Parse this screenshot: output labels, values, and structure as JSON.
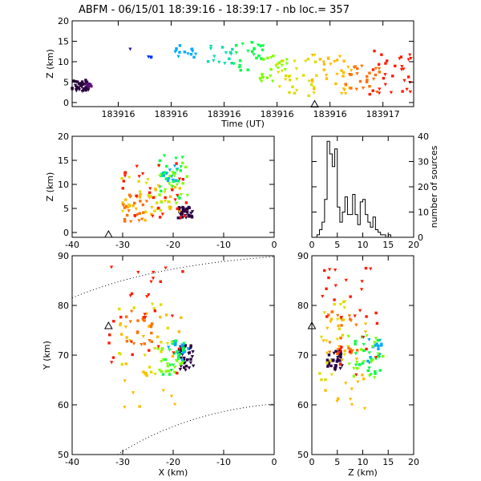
{
  "title": "ABFM - 06/15/01 18:39:16 - 18:39:17 - nb loc.=     357",
  "chart_data": [
    {
      "id": "time-height",
      "type": "scatter",
      "xlabel": "Time (UT)",
      "ylabel": "Z (km)",
      "xlim": [
        0,
        1
      ],
      "ylim": [
        -1,
        20
      ],
      "xticks": [
        {
          "v": 0.135,
          "label": "183916"
        },
        {
          "v": 0.29,
          "label": "183916"
        },
        {
          "v": 0.445,
          "label": "183916"
        },
        {
          "v": 0.6,
          "label": "183916"
        },
        {
          "v": 0.755,
          "label": "183916"
        },
        {
          "v": 0.91,
          "label": "183917"
        }
      ],
      "yticks": [
        0,
        5,
        10,
        15,
        20
      ],
      "station_marker": {
        "x": 0.71,
        "z": -0.5
      },
      "clusters": [
        {
          "color": "#2a0040",
          "x": [
            0.0,
            0.05
          ],
          "z": [
            2.5,
            5.5
          ],
          "n": 45
        },
        {
          "color": "#5a0f78",
          "x": [
            0.04,
            0.06
          ],
          "z": [
            3.5,
            5.0
          ],
          "n": 6
        },
        {
          "color": "#3a1aa0",
          "x": [
            0.17,
            0.17
          ],
          "z": [
            13,
            13.5
          ],
          "n": 1
        },
        {
          "color": "#0033ff",
          "x": [
            0.22,
            0.25
          ],
          "z": [
            11,
            12.5
          ],
          "n": 3
        },
        {
          "color": "#00aaff",
          "x": [
            0.28,
            0.38
          ],
          "z": [
            11,
            14
          ],
          "n": 14
        },
        {
          "color": "#00ddaa",
          "x": [
            0.38,
            0.47
          ],
          "z": [
            9.5,
            14
          ],
          "n": 14
        },
        {
          "color": "#00ff44",
          "x": [
            0.47,
            0.56
          ],
          "z": [
            7.5,
            15.5
          ],
          "n": 22
        },
        {
          "color": "#7fff00",
          "x": [
            0.55,
            0.63
          ],
          "z": [
            5,
            12
          ],
          "n": 22
        },
        {
          "color": "#dddd00",
          "x": [
            0.6,
            0.72
          ],
          "z": [
            1.5,
            12
          ],
          "n": 28
        },
        {
          "color": "#ffbb00",
          "x": [
            0.7,
            0.82
          ],
          "z": [
            2,
            12
          ],
          "n": 30
        },
        {
          "color": "#ff7000",
          "x": [
            0.8,
            0.9
          ],
          "z": [
            2.5,
            9
          ],
          "n": 24
        },
        {
          "color": "#ff1a00",
          "x": [
            0.87,
            1.0
          ],
          "z": [
            2,
            13.5
          ],
          "n": 30
        }
      ]
    },
    {
      "id": "x-z",
      "type": "scatter",
      "xlabel": "",
      "ylabel": "Z (km)",
      "xlim": [
        -40,
        0
      ],
      "ylim": [
        -1,
        20
      ],
      "xticks": [
        -40,
        -30,
        -20,
        -10,
        0
      ],
      "yticks": [
        0,
        5,
        10,
        15,
        20
      ],
      "station_marker": {
        "x": -32.8,
        "z": -0.5
      },
      "clusters": [
        {
          "color": "#2a0040",
          "x": [
            -19,
            -16
          ],
          "z": [
            3,
            5.5
          ],
          "n": 35
        },
        {
          "color": "#00aaff",
          "x": [
            -22,
            -19
          ],
          "z": [
            10,
            14
          ],
          "n": 14
        },
        {
          "color": "#00ff44",
          "x": [
            -23,
            -18
          ],
          "z": [
            7,
            16
          ],
          "n": 22
        },
        {
          "color": "#7fff00",
          "x": [
            -23,
            -17
          ],
          "z": [
            6,
            15
          ],
          "n": 18
        },
        {
          "color": "#dddd00",
          "x": [
            -31,
            -20
          ],
          "z": [
            2,
            12
          ],
          "n": 22
        },
        {
          "color": "#ffbb00",
          "x": [
            -30,
            -18
          ],
          "z": [
            2,
            10
          ],
          "n": 24
        },
        {
          "color": "#ff7000",
          "x": [
            -30,
            -25
          ],
          "z": [
            2,
            8
          ],
          "n": 22
        },
        {
          "color": "#ff1a00",
          "x": [
            -30,
            -17
          ],
          "z": [
            3,
            15
          ],
          "n": 30
        }
      ]
    },
    {
      "id": "altitude-histogram",
      "type": "histogram",
      "xlabel": "",
      "ylabel": "number of sources",
      "xlim": [
        0,
        20
      ],
      "ylim": [
        0,
        40
      ],
      "xticks": [
        0,
        5,
        10,
        15,
        20
      ],
      "yticks": [
        0,
        10,
        20,
        30,
        40
      ],
      "bin_width": 0.5,
      "bin_start": 1.0,
      "counts": [
        1,
        3,
        6,
        15,
        38,
        33,
        28,
        35,
        12,
        6,
        10,
        16,
        9,
        9,
        17,
        9,
        5,
        14,
        15,
        9,
        6,
        4,
        8,
        3,
        2,
        1,
        1,
        0,
        1
      ]
    },
    {
      "id": "x-y",
      "type": "scatter",
      "xlabel": "X (km)",
      "ylabel": "Y (km)",
      "xlim": [
        -40,
        0
      ],
      "ylim": [
        50,
        90
      ],
      "xticks": [
        -40,
        -30,
        -20,
        -10,
        0
      ],
      "yticks": [
        50,
        60,
        70,
        80,
        90
      ],
      "station_marker": {
        "x": -32.8,
        "y": 75.8
      },
      "clusters": [
        {
          "color": "#2a0040",
          "x": [
            -19,
            -16
          ],
          "y": [
            67,
            72
          ],
          "n": 35
        },
        {
          "color": "#00aaff",
          "x": [
            -21,
            -17
          ],
          "y": [
            69,
            73
          ],
          "n": 14
        },
        {
          "color": "#00ff44",
          "x": [
            -22,
            -17
          ],
          "y": [
            66,
            73
          ],
          "n": 22
        },
        {
          "color": "#7fff00",
          "x": [
            -23,
            -18
          ],
          "y": [
            66,
            73
          ],
          "n": 18
        },
        {
          "color": "#dddd00",
          "x": [
            -32,
            -21
          ],
          "y": [
            66,
            81
          ],
          "n": 22
        },
        {
          "color": "#ffbb00",
          "x": [
            -31,
            -18
          ],
          "y": [
            59.5,
            79
          ],
          "n": 24
        },
        {
          "color": "#ff7000",
          "x": [
            -30,
            -24
          ],
          "y": [
            72,
            79
          ],
          "n": 20
        },
        {
          "color": "#ff1a00",
          "x": [
            -33,
            -17
          ],
          "y": [
            66,
            88
          ],
          "n": 30
        }
      ]
    },
    {
      "id": "z-y",
      "type": "scatter",
      "xlabel": "Z (km)",
      "ylabel": "",
      "xlim": [
        0,
        20
      ],
      "ylim": [
        50,
        90
      ],
      "xticks": [
        0,
        5,
        10,
        15,
        20
      ],
      "yticks": [
        50,
        60,
        70,
        80,
        90
      ],
      "station_marker": {
        "x": 0,
        "y": 75.8
      },
      "clusters": [
        {
          "color": "#2a0040",
          "x": [
            3,
            6
          ],
          "y": [
            67,
            71
          ],
          "n": 35
        },
        {
          "color": "#00aaff",
          "x": [
            11,
            14
          ],
          "y": [
            68,
            74
          ],
          "n": 14
        },
        {
          "color": "#00ff44",
          "x": [
            8,
            14
          ],
          "y": [
            66,
            74
          ],
          "n": 22
        },
        {
          "color": "#7fff00",
          "x": [
            7,
            14
          ],
          "y": [
            65,
            74
          ],
          "n": 18
        },
        {
          "color": "#dddd00",
          "x": [
            1.5,
            8
          ],
          "y": [
            65,
            81
          ],
          "n": 22
        },
        {
          "color": "#ffbb00",
          "x": [
            2,
            11
          ],
          "y": [
            59,
            78
          ],
          "n": 24
        },
        {
          "color": "#ff7000",
          "x": [
            3,
            9
          ],
          "y": [
            70,
            79
          ],
          "n": 20
        },
        {
          "color": "#ff1a00",
          "x": [
            2,
            13
          ],
          "y": [
            65,
            88
          ],
          "n": 30
        }
      ]
    }
  ]
}
